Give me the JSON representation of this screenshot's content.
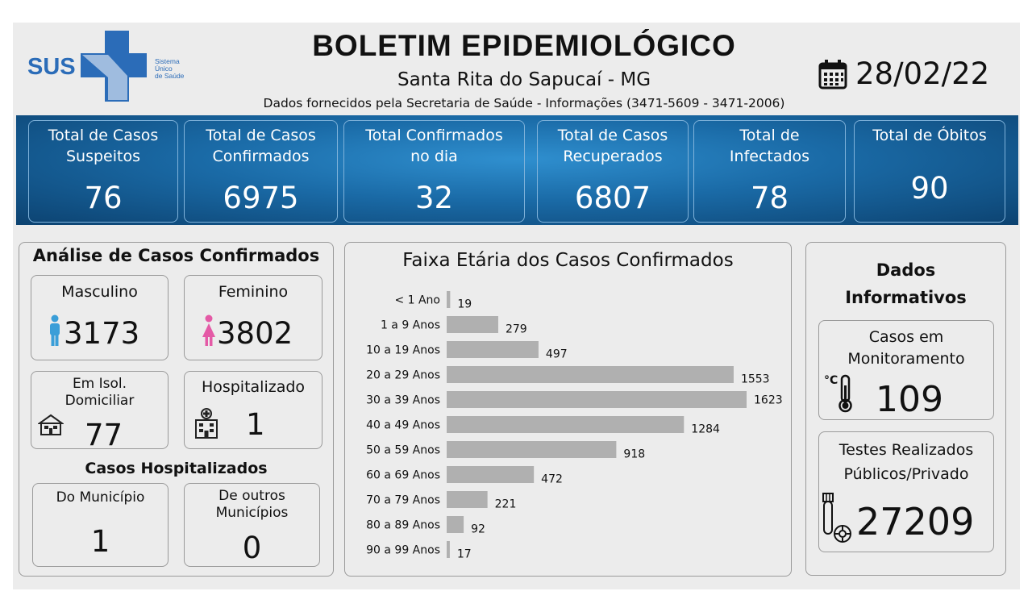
{
  "header": {
    "logo_text": "SUS",
    "logo_sub": [
      "Sistema",
      "Único",
      "de Saúde"
    ],
    "title": "BOLETIM EPIDEMIOLÓGICO",
    "city": "Santa Rita do Sapucaí - MG",
    "source": "Dados fornecidos pela Secretaria de Saúde - Informações (3471-5609 - 3471-2006)",
    "date": "28/02/22",
    "date_icon": "calendar-icon"
  },
  "stats": [
    {
      "label": "Total de Casos Suspeitos",
      "line1": "Total de Casos",
      "line2": "Suspeitos",
      "value": "76"
    },
    {
      "label": "Total de Casos Confirmados",
      "line1": "Total de Casos",
      "line2": "Confirmados",
      "value": "6975"
    },
    {
      "label": "Total Confirmados no dia",
      "line1": "Total Confirmados",
      "line2": "no dia",
      "value": "32"
    },
    {
      "label": "Total de Casos Recuperados",
      "line1": "Total de Casos",
      "line2": "Recuperados",
      "value": "6807"
    },
    {
      "label": "Total de Infectados",
      "line1": "Total de",
      "line2": "Infectados",
      "value": "78"
    },
    {
      "label": "Total de Óbitos",
      "line1": "Total de Óbitos",
      "line2": "",
      "value": "90"
    }
  ],
  "analysis": {
    "title": "Análise de Casos Confirmados",
    "male": {
      "label": "Masculino",
      "value": "3173",
      "icon": "male-person-icon"
    },
    "female": {
      "label": "Feminino",
      "value": "3802",
      "icon": "female-person-icon"
    },
    "isolation": {
      "line1": "Em Isol.",
      "line2": "Domiciliar",
      "value": "77",
      "icon": "house-icon"
    },
    "hospitalized": {
      "label": "Hospitalizado",
      "value": "1",
      "icon": "hospital-icon"
    },
    "hosp_title": "Casos Hospitalizados",
    "municipality": {
      "label": "Do Município",
      "value": "1"
    },
    "other": {
      "line1": "De outros",
      "line2": "Municípios",
      "value": "0"
    }
  },
  "chart_data": {
    "type": "bar",
    "orientation": "horizontal",
    "title": "Faixa Etária dos Casos Confirmados",
    "categories": [
      "< 1 Ano",
      "1 a 9 Anos",
      "10 a 19 Anos",
      "20 a 29 Anos",
      "30 a 39 Anos",
      "40 a 49 Anos",
      "50 a 59 Anos",
      "60 a 69 Anos",
      "70 a 79 Anos",
      "80 a 89 Anos",
      "90 a 99 Anos"
    ],
    "values": [
      19,
      279,
      497,
      1553,
      1623,
      1284,
      918,
      472,
      221,
      92,
      17
    ],
    "xlim": [
      0,
      1623
    ],
    "bar_color": "#b0b0b0",
    "grid": false,
    "data_labels": true
  },
  "info": {
    "title_line1": "Dados",
    "title_line2": "Informativos",
    "monitoring": {
      "line1": "Casos em",
      "line2": "Monitoramento",
      "value": "109",
      "icon": "thermometer-icon"
    },
    "tests": {
      "line1": "Testes Realizados",
      "line2": "Públicos/Privado",
      "value": "27209",
      "icon": "test-tube-virus-icon"
    }
  },
  "colors": {
    "banner": "#1a6aa6",
    "sus_blue": "#2b6cb8",
    "male": "#3a9ed8",
    "female": "#e45aa6",
    "bars": "#b0b0b0"
  }
}
